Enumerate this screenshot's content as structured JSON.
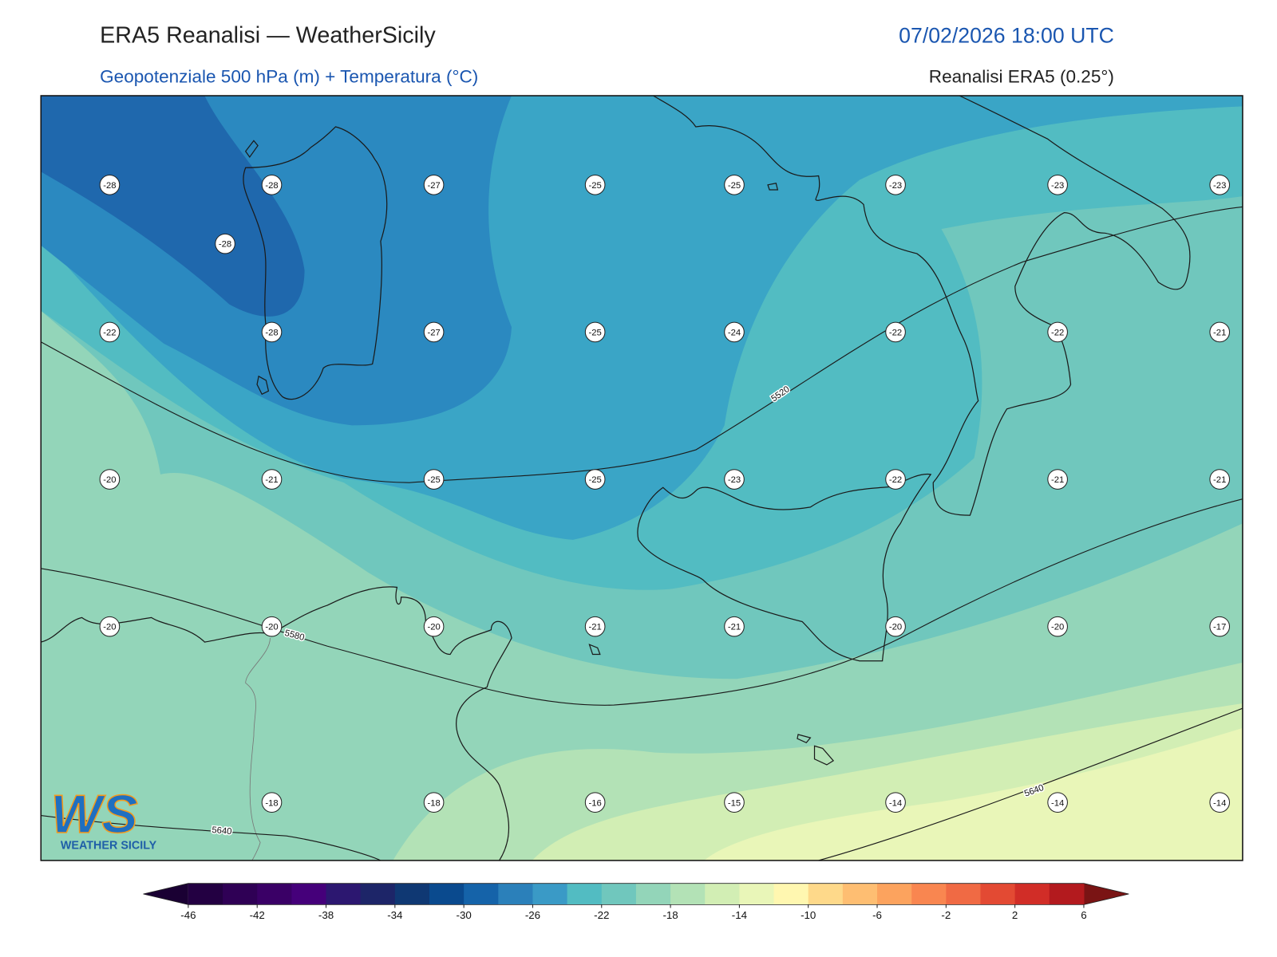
{
  "header": {
    "title": "ERA5 Reanalisi — WeatherSicily",
    "subtitle": "Geopotenziale 500 hPa (m) + Temperatura (°C)",
    "datetime": "07/02/2026 18:00 UTC",
    "source": "Reanalisi ERA5 (0.25°)"
  },
  "map": {
    "temperature_labels": [
      [
        -28,
        -28,
        -27,
        -25,
        -25,
        -23,
        -23,
        -23
      ],
      [
        -22,
        -28,
        -27,
        -25,
        -24,
        -22,
        -22,
        -21
      ],
      [
        -20,
        -21,
        -25,
        -25,
        -23,
        -22,
        -21,
        -21
      ],
      [
        -20,
        -20,
        -20,
        -21,
        -21,
        -20,
        -20,
        -17
      ],
      [
        null,
        -18,
        -18,
        -16,
        -15,
        -14,
        -14,
        -14
      ]
    ],
    "extra_labels": [
      -28
    ],
    "contour_labels": [
      5520,
      5580,
      5640,
      5640
    ]
  },
  "colorbar": {
    "ticks": [
      -46,
      -42,
      -38,
      -34,
      -30,
      -26,
      -22,
      -18,
      -14,
      -10,
      -6,
      -2,
      2,
      6
    ],
    "under_color": "#1a0033",
    "over_color": "#7a1414",
    "colors": [
      "#230042",
      "#2f0055",
      "#3a0066",
      "#45007a",
      "#2c1770",
      "#1d2568",
      "#0f3873",
      "#0a4a8e",
      "#1563a9",
      "#2b80ba",
      "#3a9ac6",
      "#52bcc2",
      "#70c7bd",
      "#93d5b9",
      "#b3e2b6",
      "#d2eeb4",
      "#e9f6b8",
      "#fff7b0",
      "#fed98a",
      "#febe72",
      "#fca35e",
      "#f98650",
      "#f06a44",
      "#e34a33",
      "#d12d27",
      "#b31a1e"
    ]
  },
  "logo": {
    "mark": "WS",
    "name": "WEATHER SICILY"
  }
}
